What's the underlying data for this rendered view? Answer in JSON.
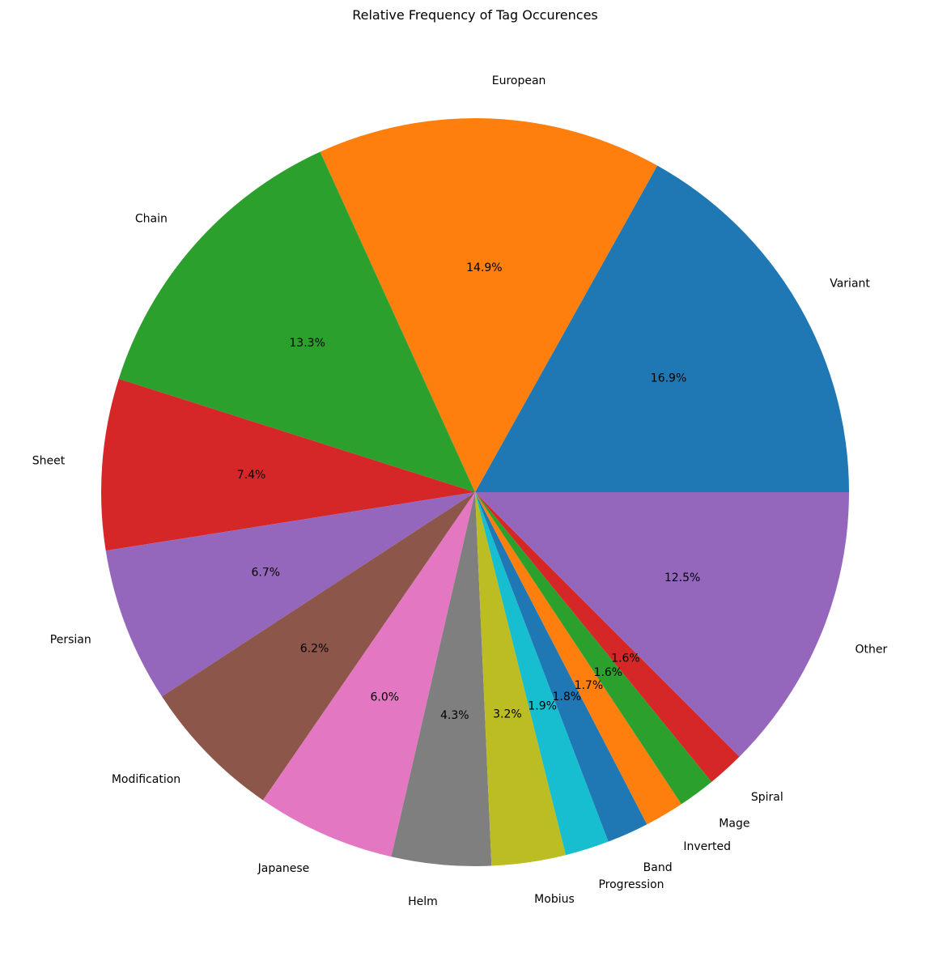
{
  "chart_data": {
    "type": "pie",
    "title": "Relative Frequency of Tag Occurences",
    "slices": [
      {
        "label": "Variant",
        "value": 16.9,
        "pct_label": "16.9%",
        "color": "#1f77b4"
      },
      {
        "label": "European",
        "value": 14.9,
        "pct_label": "14.9%",
        "color": "#ff7f0e"
      },
      {
        "label": "Chain",
        "value": 13.3,
        "pct_label": "13.3%",
        "color": "#2ca02c"
      },
      {
        "label": "Sheet",
        "value": 7.4,
        "pct_label": "7.4%",
        "color": "#d62728"
      },
      {
        "label": "Persian",
        "value": 6.7,
        "pct_label": "6.7%",
        "color": "#9467bd"
      },
      {
        "label": "Modification",
        "value": 6.2,
        "pct_label": "6.2%",
        "color": "#8c564b"
      },
      {
        "label": "Japanese",
        "value": 6.0,
        "pct_label": "6.0%",
        "color": "#e377c2"
      },
      {
        "label": "Helm",
        "value": 4.3,
        "pct_label": "4.3%",
        "color": "#7f7f7f"
      },
      {
        "label": "Mobius",
        "value": 3.2,
        "pct_label": "3.2%",
        "color": "#bcbd22"
      },
      {
        "label": "Progression",
        "value": 1.9,
        "pct_label": "1.9%",
        "color": "#17becf"
      },
      {
        "label": "Band",
        "value": 1.8,
        "pct_label": "1.8%",
        "color": "#1f77b4"
      },
      {
        "label": "Inverted",
        "value": 1.7,
        "pct_label": "1.7%",
        "color": "#ff7f0e"
      },
      {
        "label": "Mage",
        "value": 1.6,
        "pct_label": "1.6%",
        "color": "#2ca02c"
      },
      {
        "label": "Spiral",
        "value": 1.6,
        "pct_label": "1.6%",
        "color": "#d62728"
      },
      {
        "label": "Other",
        "value": 12.5,
        "pct_label": "12.5%",
        "color": "#9467bd"
      }
    ],
    "start_angle_deg": 0,
    "direction": "counterclockwise"
  }
}
